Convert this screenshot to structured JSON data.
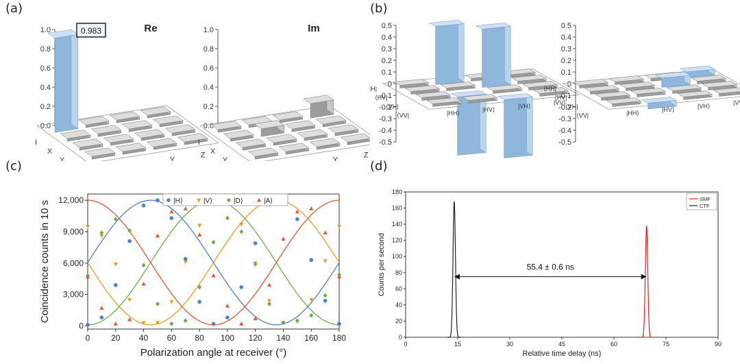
{
  "panels": {
    "a": "(a)",
    "b": "(b)",
    "c": "(c)",
    "d": "(d)"
  },
  "chart_data": [
    {
      "id": "a",
      "type": "bar3d",
      "subplots": [
        {
          "title": "Re",
          "zticks": [
            "1.0",
            "0.8",
            "0.6",
            "0.4",
            "0.2",
            "0.0"
          ],
          "rows": [
            "I",
            "X",
            "Y",
            "Z"
          ],
          "cols": [
            "I",
            "X",
            "Y",
            "Z"
          ],
          "values": [
            [
              0.983,
              0,
              0,
              0
            ],
            [
              0,
              0,
              0,
              0
            ],
            [
              0,
              0,
              0,
              0
            ],
            [
              0,
              0,
              0,
              0
            ]
          ],
          "annotation": "0.983"
        },
        {
          "title": "Im",
          "zticks": [
            "1.0",
            "0.8",
            "0.6",
            "0.4",
            "0.2",
            "0.0"
          ],
          "rows": [
            "I",
            "X",
            "Y",
            "Z"
          ],
          "cols": [
            "I",
            "X",
            "Y",
            "Z"
          ],
          "values": [
            [
              0,
              0,
              0,
              0.15
            ],
            [
              0,
              0.08,
              0,
              0
            ],
            [
              0,
              0,
              0,
              0
            ],
            [
              0,
              0,
              0,
              0
            ]
          ]
        }
      ]
    },
    {
      "id": "b",
      "type": "bar3d",
      "subplots": [
        {
          "zticks": [
            "0.5",
            "0.4",
            "0.3",
            "0.2",
            "0.1",
            "0",
            "-0.1",
            "-0.2",
            "-0.3",
            "-0.4",
            "-0.5"
          ],
          "rows": [
            "⟨HH|",
            "⟨HV|",
            "⟨VH|",
            "⟨VV|"
          ],
          "cols": [
            "|HH⟩",
            "|HV⟩",
            "|VH⟩",
            "|VV⟩"
          ],
          "values": [
            [
              0,
              0.5,
              0,
              0
            ],
            [
              0,
              0,
              0.5,
              0
            ],
            [
              0,
              -0.5,
              0,
              0
            ],
            [
              0,
              0,
              -0.5,
              0
            ]
          ]
        },
        {
          "zticks": [
            "0.5",
            "0.4",
            "0.3",
            "0.2",
            "0.1",
            "0",
            "-0.1",
            "-0.2",
            "-0.3",
            "-0.4",
            "-0.5"
          ],
          "rows": [
            "⟨HH|",
            "⟨HV|",
            "⟨VH|",
            "⟨VV|"
          ],
          "cols": [
            "|HH⟩",
            "|HV⟩",
            "|VH⟩",
            "|VV⟩"
          ],
          "values": [
            [
              0,
              0,
              0,
              0.05
            ],
            [
              0,
              0,
              0.08,
              0
            ],
            [
              0,
              0,
              0,
              0
            ],
            [
              0,
              -0.05,
              0,
              0
            ]
          ]
        }
      ]
    },
    {
      "id": "c",
      "type": "scatter",
      "xlabel": "Polarization angle at receiver  (°)",
      "ylabel": "Coincidence counts in 10 s",
      "xlim": [
        0,
        180
      ],
      "ylim": [
        -300,
        12600
      ],
      "xticks": [
        0,
        20,
        40,
        60,
        80,
        100,
        120,
        140,
        160,
        180
      ],
      "yticks": [
        0,
        3000,
        6000,
        9000,
        12000
      ],
      "ytick_labels": [
        "0",
        "3,000",
        "6,000",
        "9,000",
        "12,000"
      ],
      "amplitude": 11900,
      "series": [
        {
          "name": "|H⟩",
          "color": "#4f7fc8",
          "marker": "circle",
          "phase_deg": 45,
          "x": [
            0,
            10,
            20,
            30,
            40,
            50,
            60,
            70,
            80,
            90,
            100,
            110,
            120,
            130,
            140,
            150,
            160,
            170,
            180
          ],
          "y": [
            100,
            800,
            3900,
            8100,
            11500,
            12000,
            10300,
            6400,
            2300,
            200,
            800,
            3700,
            7900,
            11600,
            12000,
            10200,
            6300,
            2400,
            200
          ]
        },
        {
          "name": "|V⟩",
          "color": "#e6a020",
          "marker": "triangle-down",
          "phase_deg": 135,
          "x": [
            0,
            10,
            20,
            30,
            40,
            50,
            60,
            70,
            80,
            90,
            100,
            110,
            120,
            130,
            140,
            150,
            160,
            170,
            180
          ],
          "y": [
            9500,
            8600,
            5900,
            2500,
            300,
            300,
            2300,
            6100,
            9600,
            11700,
            11900,
            9700,
            6000,
            2400,
            300,
            400,
            2500,
            6200,
            9500
          ]
        },
        {
          "name": "|D⟩",
          "color": "#70ad47",
          "marker": "diamond",
          "phase_deg": 90,
          "x": [
            0,
            10,
            20,
            30,
            40,
            50,
            60,
            70,
            80,
            90,
            100,
            110,
            120,
            130,
            140,
            150,
            160,
            170,
            180
          ],
          "y": [
            4800,
            8900,
            10200,
            9100,
            5800,
            2100,
            200,
            500,
            3700,
            8000,
            10300,
            9000,
            5900,
            2100,
            300,
            500,
            1000,
            2900,
            4900
          ]
        },
        {
          "name": "|A⟩",
          "color": "#e8543a",
          "marker": "triangle-up",
          "phase_deg": 0,
          "x": [
            0,
            10,
            20,
            30,
            40,
            50,
            60,
            70,
            80,
            90,
            100,
            110,
            120,
            130,
            140,
            150,
            160,
            170,
            180
          ],
          "y": [
            4700,
            1700,
            200,
            600,
            4000,
            8600,
            10900,
            11200,
            8700,
            4800,
            1900,
            200,
            700,
            3900,
            8300,
            10900,
            11200,
            8900,
            4700
          ]
        }
      ]
    },
    {
      "id": "d",
      "type": "line",
      "xlabel": "Relative time delay (ns)",
      "ylabel": "Counts per second",
      "xlim": [
        0,
        90
      ],
      "ylim": [
        0,
        180
      ],
      "xticks": [
        0,
        15,
        30,
        45,
        60,
        75,
        90
      ],
      "yticks": [
        0,
        20,
        40,
        60,
        80,
        100,
        120,
        140,
        160,
        180
      ],
      "annotation": "55.4 ± 0.6 ns",
      "arrow_from": 14,
      "arrow_to": 69.4,
      "arrow_y": 75,
      "series": [
        {
          "name": "SMF",
          "color": "#e02020",
          "peak_x": 69.4,
          "peak_y": 138,
          "width": 0.35
        },
        {
          "name": "CTF",
          "color": "#202020",
          "peak_x": 14,
          "peak_y": 168,
          "width": 0.35
        }
      ],
      "legend": "top-right"
    }
  ]
}
